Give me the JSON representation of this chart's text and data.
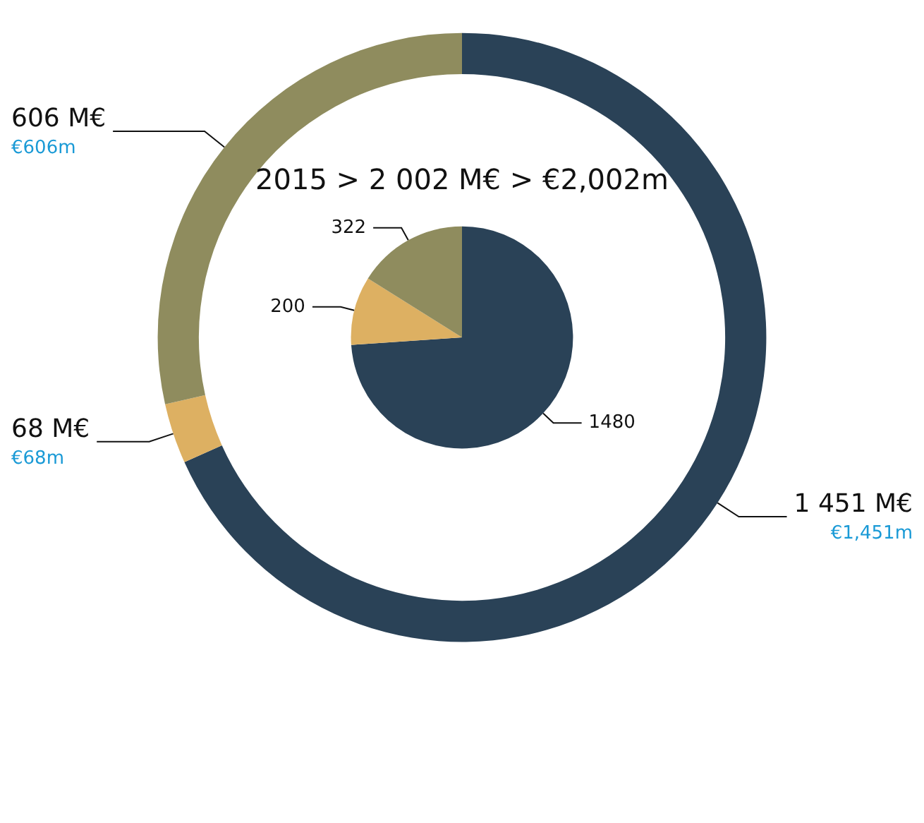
{
  "chart_data": [
    {
      "type": "donut",
      "title": "2015 > 2 002 M€ > €2,002m",
      "categories": [
        null,
        null,
        null
      ],
      "values": [
        1451,
        68,
        606
      ],
      "colors": [
        "#2a4257",
        "#ddb062",
        "#8f8c5e"
      ],
      "value_labels": [
        "1 451 M€\n€1,451m",
        "68 M€\n€68m",
        "606 M€\n€606m"
      ]
    },
    {
      "type": "pie",
      "categories": [
        null,
        null,
        null
      ],
      "values": [
        1480,
        200,
        322
      ],
      "colors": [
        "#2a4257",
        "#ddb062",
        "#8f8c5e"
      ],
      "data_labels": true
    }
  ]
}
